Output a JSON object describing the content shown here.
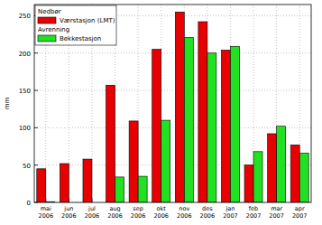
{
  "chart_data": {
    "type": "bar",
    "y_label": "mm",
    "categories": [
      "mai 2006",
      "jun 2006",
      "jul 2006",
      "aug 2006",
      "sep 2006",
      "okt 2006",
      "nov 2006",
      "des 2006",
      "jan 2007",
      "feb 2007",
      "mar 2007",
      "apr 2007"
    ],
    "series": [
      {
        "group": "Nedbør",
        "name": "Værstasjon (LMT)",
        "color": "#e80000",
        "values": [
          45,
          52,
          58,
          157,
          109,
          205,
          255,
          242,
          204,
          50,
          92,
          77
        ]
      },
      {
        "group": "Avrenning",
        "name": "Bekkestasjon",
        "color": "#22e022",
        "values": [
          1,
          null,
          null,
          34,
          35,
          110,
          221,
          200,
          209,
          68,
          102,
          66
        ]
      }
    ],
    "ylim": [
      0,
      265
    ],
    "yticks": [
      0,
      50,
      100,
      150,
      200,
      250
    ],
    "grid": true,
    "legend": "top-left"
  }
}
